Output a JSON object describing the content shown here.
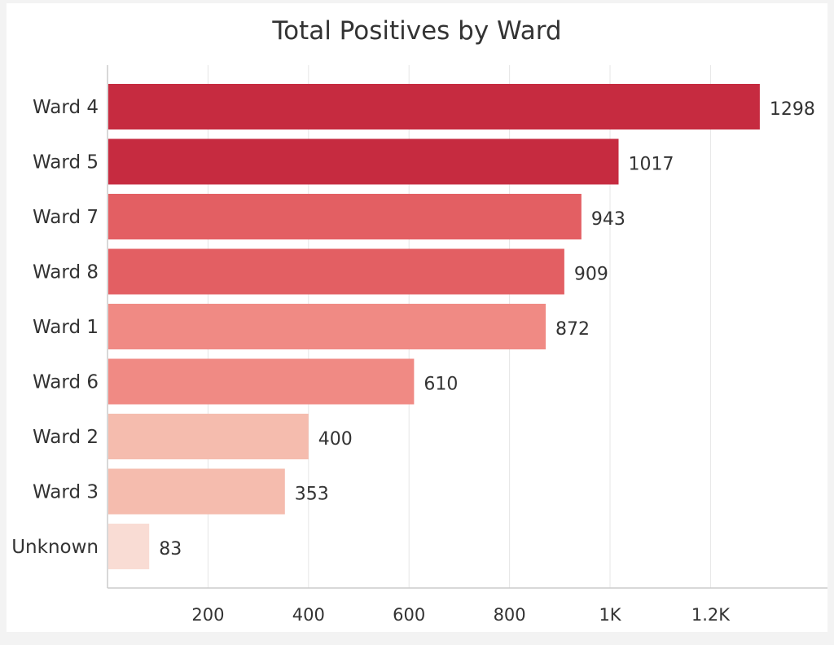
{
  "chart_data": {
    "type": "bar",
    "orientation": "horizontal",
    "title": "Total Positives by Ward",
    "xlabel": "",
    "ylabel": "",
    "categories": [
      "Ward 4",
      "Ward 5",
      "Ward 7",
      "Ward 8",
      "Ward 1",
      "Ward 6",
      "Ward 2",
      "Ward 3",
      "Unknown"
    ],
    "values": [
      1298,
      1017,
      943,
      909,
      872,
      610,
      400,
      353,
      83
    ],
    "value_labels": [
      "1298",
      "1017",
      "943",
      "909",
      "872",
      "610",
      "400",
      "353",
      "83"
    ],
    "bar_colors": [
      "#c62b40",
      "#c62b40",
      "#e35f63",
      "#e35f63",
      "#f08a84",
      "#f08a84",
      "#f5bcae",
      "#f5bcae",
      "#f9dcd4"
    ],
    "xlim": [
      0,
      1410
    ],
    "x_ticks": [
      200,
      400,
      600,
      800,
      1000,
      1200
    ],
    "x_tick_labels": [
      "200",
      "400",
      "600",
      "800",
      "1K",
      "1.2K"
    ],
    "grid": true,
    "legend": "none"
  }
}
